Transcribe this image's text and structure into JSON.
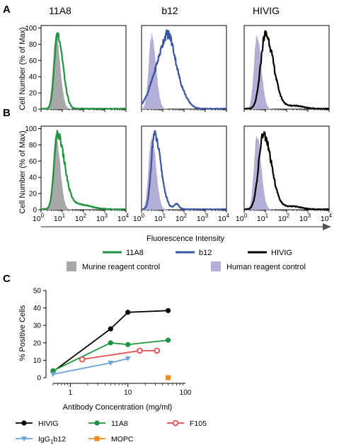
{
  "panels": {
    "A": "A",
    "B": "B",
    "C": "C"
  },
  "columns": [
    "11A8",
    "b12",
    "HIVIG"
  ],
  "histogram": {
    "ylabel": "Cell Number (% of Max)",
    "yticks": [
      "0",
      "20",
      "40",
      "60",
      "80",
      "100"
    ],
    "xticks": [
      {
        "base": "10",
        "exp": "0"
      },
      {
        "base": "10",
        "exp": "1"
      },
      {
        "base": "10",
        "exp": "2"
      },
      {
        "base": "10",
        "exp": "3"
      },
      {
        "base": "10",
        "exp": "4"
      }
    ],
    "xlabel": "Fluorescence Intensity"
  },
  "legend_top": [
    {
      "label": "11A8",
      "color": "#1e9440"
    },
    {
      "label": "b12",
      "color": "#3a56a0"
    },
    {
      "label": "HIVIG",
      "color": "#000000"
    }
  ],
  "legend_fill": [
    {
      "label": "Murine reagent control",
      "color": "#a8a8a8"
    },
    {
      "label": "Human reagent control",
      "color": "#b3aed6"
    }
  ],
  "colors": {
    "green": "#1e9440",
    "blue": "#3a56a0",
    "black": "#000000",
    "gray_fill": "#a8a8a8",
    "lavender_fill": "#b3aed6",
    "red": "#e84a4a",
    "lightblue": "#6ea4d6",
    "orange": "#f08a1e"
  },
  "chart_data": [
    {
      "type": "area",
      "panel": "A",
      "xscale": "log",
      "xlim": [
        1,
        10000
      ],
      "ylim": [
        0,
        100
      ],
      "ylabel": "Cell Number (% of Max)",
      "histograms": [
        {
          "column": "11A8",
          "control": "Murine reagent control",
          "control_peak": 5,
          "sample_peak": 6,
          "sample_tail": "short"
        },
        {
          "column": "b12",
          "control": "Human reagent control",
          "control_peak": 3,
          "sample_peak": 20,
          "sample_tail": "broad"
        },
        {
          "column": "HIVIG",
          "control": "Human reagent control",
          "control_peak": 4,
          "sample_peak": 10,
          "sample_tail": "moderate"
        }
      ]
    },
    {
      "type": "area",
      "panel": "B",
      "xscale": "log",
      "xlim": [
        1,
        10000
      ],
      "ylim": [
        0,
        100
      ],
      "ylabel": "Cell Number (% of Max)",
      "xlabel": "Fluorescence Intensity",
      "histograms": [
        {
          "column": "11A8",
          "control": "Murine reagent control",
          "control_peak": 5,
          "sample_peak": 6,
          "sample_tail": "long-low"
        },
        {
          "column": "b12",
          "control": "Human reagent control",
          "control_peak": 3,
          "sample_peak": 4,
          "sample_tail": "short-with-minor-peak"
        },
        {
          "column": "HIVIG",
          "control": "Human reagent control",
          "control_peak": 4,
          "sample_peak": 8,
          "sample_tail": "moderate"
        }
      ]
    },
    {
      "type": "line",
      "panel": "C",
      "xscale": "log",
      "xlabel": "Antibody Concentration (mg/ml)",
      "ylabel": "% Positive Cells",
      "xlim": [
        0.5,
        100
      ],
      "ylim": [
        0,
        50
      ],
      "xticks": [
        "1",
        "10",
        "100"
      ],
      "yticks": [
        "0",
        "10",
        "20",
        "30",
        "40",
        "50"
      ],
      "series": [
        {
          "name": "HIVIG",
          "color": "#000000",
          "marker": "circle",
          "x": [
            0.5,
            5,
            10,
            50
          ],
          "y": [
            3.5,
            28,
            37.5,
            38.5
          ]
        },
        {
          "name": "11A8",
          "color": "#1e9440",
          "marker": "circle",
          "x": [
            0.5,
            5,
            10,
            50
          ],
          "y": [
            4,
            20,
            19,
            21.5
          ]
        },
        {
          "name": "F105",
          "color": "#e84a4a",
          "marker": "open-circle",
          "x": [
            1.6,
            16,
            32
          ],
          "y": [
            10.5,
            15.5,
            15.5
          ]
        },
        {
          "name_parts": [
            "IgG",
            "1",
            "b12"
          ],
          "color": "#6ea4d6",
          "marker": "triangle-down",
          "x": [
            0.5,
            5,
            10
          ],
          "y": [
            2,
            8.5,
            11
          ]
        },
        {
          "name": "MOPC",
          "color": "#f08a1e",
          "marker": "square",
          "x": [
            50
          ],
          "y": [
            0
          ]
        }
      ]
    }
  ]
}
